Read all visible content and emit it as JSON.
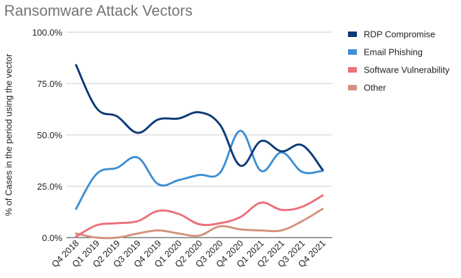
{
  "chart_data": {
    "type": "line",
    "title": "Ransomware Attack Vectors",
    "xlabel": "",
    "ylabel": "% of Cases in the period using the vector",
    "categories": [
      "Q4 2018",
      "Q1 2019",
      "Q2 2019",
      "Q3 2019",
      "Q4 2019",
      "Q1 2020",
      "Q2 2020",
      "Q3 2020",
      "Q4 2020",
      "Q1 2021",
      "Q2 2021",
      "Q3 2021",
      "Q4 2021"
    ],
    "y_ticks": [
      "0.0%",
      "25.0%",
      "50.0%",
      "75.0%",
      "100.0%"
    ],
    "ylim": [
      0,
      100
    ],
    "legend_position": "right",
    "series": [
      {
        "name": "RDP Compromise",
        "color": "#0c3a78",
        "values": [
          84,
          63,
          59,
          51,
          57.5,
          58,
          61,
          55,
          35,
          47,
          42,
          45,
          33
        ]
      },
      {
        "name": "Email Phishing",
        "color": "#3f8fd4",
        "values": [
          14,
          31,
          34,
          39,
          26,
          28,
          30.5,
          31.5,
          52,
          32.5,
          41.5,
          32,
          32.5
        ]
      },
      {
        "name": "Software Vulnerability",
        "color": "#ec6f7c",
        "values": [
          0.5,
          6,
          7,
          8,
          13,
          11.5,
          6.5,
          7,
          10,
          17,
          13.5,
          15,
          20.5
        ]
      },
      {
        "name": "Other",
        "color": "#d4927e",
        "values": [
          2,
          0,
          0,
          2,
          3.5,
          2,
          1,
          5.5,
          4,
          3.5,
          3.5,
          8,
          14
        ]
      }
    ]
  }
}
